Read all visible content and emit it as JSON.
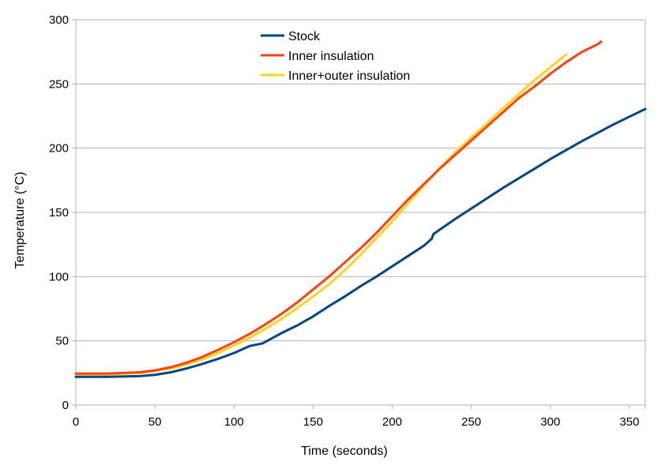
{
  "chart_data": {
    "type": "line",
    "title": "",
    "xlabel": "Time (seconds)",
    "ylabel": "Temperature (°C)",
    "xlim": [
      0,
      360
    ],
    "ylim": [
      0,
      300
    ],
    "xticks": [
      0,
      50,
      100,
      150,
      200,
      250,
      300,
      350
    ],
    "yticks": [
      0,
      50,
      100,
      150,
      200,
      250,
      300
    ],
    "grid": "horizontal",
    "legend_position": "top-center",
    "series": [
      {
        "name": "Stock",
        "color": "#004586",
        "x": [
          0,
          20,
          40,
          50,
          60,
          70,
          80,
          90,
          100,
          110,
          118,
          130,
          140,
          150,
          160,
          170,
          180,
          190,
          200,
          210,
          220,
          225,
          226,
          230,
          240,
          250,
          260,
          270,
          280,
          290,
          300,
          310,
          320,
          330,
          340,
          350,
          360
        ],
        "y": [
          22,
          22,
          22.5,
          23.5,
          25.5,
          28.5,
          32,
          36,
          40.5,
          46,
          48,
          56,
          62,
          69,
          77,
          84.5,
          92.5,
          100,
          108,
          116,
          124,
          129.5,
          133,
          136.5,
          145,
          153,
          161,
          169,
          176.5,
          184,
          191.5,
          198.5,
          205.5,
          212,
          218.5,
          224.5,
          230.5
        ]
      },
      {
        "name": "Inner insulation",
        "color": "#ff420e",
        "x": [
          0,
          20,
          40,
          50,
          60,
          70,
          80,
          90,
          100,
          110,
          120,
          130,
          140,
          150,
          160,
          170,
          180,
          190,
          200,
          210,
          220,
          230,
          240,
          250,
          260,
          270,
          280,
          290,
          300,
          310,
          320,
          330,
          332
        ],
        "y": [
          24.5,
          24.5,
          25.5,
          27,
          29.5,
          33,
          37.5,
          43,
          49,
          55.5,
          63,
          71,
          80,
          90,
          100,
          111,
          122,
          134,
          147,
          160,
          172,
          184,
          195,
          206,
          217,
          228,
          239,
          248,
          258,
          267,
          275,
          281,
          283
        ]
      },
      {
        "name": "Inner+outer insulation",
        "color": "#ffd320",
        "x": [
          0,
          20,
          40,
          50,
          60,
          70,
          80,
          90,
          100,
          110,
          120,
          130,
          140,
          150,
          160,
          170,
          180,
          190,
          200,
          210,
          220,
          230,
          240,
          250,
          260,
          270,
          280,
          290,
          300,
          310
        ],
        "y": [
          24,
          24,
          25,
          26.5,
          28.5,
          31.5,
          35.5,
          40.5,
          46.5,
          52.5,
          59.5,
          67,
          75.5,
          84.5,
          94,
          105,
          117,
          130,
          143,
          157,
          171,
          184.5,
          197,
          208.5,
          219.5,
          231,
          242,
          253,
          263,
          273
        ]
      }
    ]
  }
}
